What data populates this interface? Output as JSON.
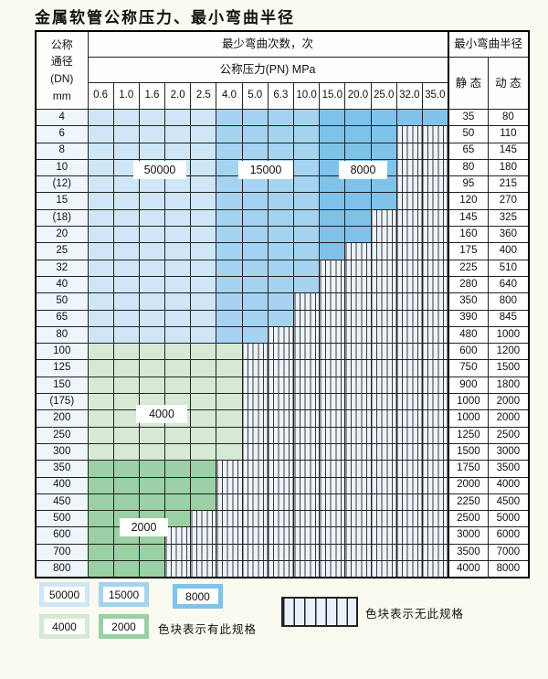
{
  "title": "金属软管公称压力、最小弯曲半径",
  "colors": {
    "c50000": "#cee6f5",
    "c15000": "#a6d3ef",
    "c8000": "#7fc2ea",
    "c4000": "#d6e9d4",
    "c2000": "#9ad0a3"
  },
  "table": {
    "header": {
      "dn_lines": [
        "公称",
        "通径",
        "(DN)",
        "mm"
      ],
      "cycles_header": "最少弯曲次数，次",
      "pn_header": "公称压力(PN) MPa",
      "pn_columns": [
        "0.6",
        "1.0",
        "1.6",
        "2.0",
        "2.5",
        "4.0",
        "5.0",
        "6.3",
        "10.0",
        "15.0",
        "20.0",
        "25.0",
        "32.0",
        "35.0"
      ],
      "radius_header": "最小弯曲半径",
      "static_header": "静 态",
      "dynamic_header": "动 态"
    },
    "blue_groups": [
      {
        "upto": 4,
        "cycles": "50000",
        "color": "c50000"
      },
      {
        "upto": 8,
        "cycles": "15000",
        "color": "c15000"
      },
      {
        "upto": 13,
        "cycles": "8000",
        "color": "c8000"
      }
    ],
    "rows": [
      {
        "dn": "4",
        "last": 13,
        "palette": "blue",
        "static": "35",
        "dynamic": "80"
      },
      {
        "dn": "6",
        "last": 11,
        "palette": "blue",
        "static": "50",
        "dynamic": "110"
      },
      {
        "dn": "8",
        "last": 11,
        "palette": "blue",
        "static": "65",
        "dynamic": "145"
      },
      {
        "dn": "10",
        "last": 11,
        "palette": "blue",
        "static": "80",
        "dynamic": "180"
      },
      {
        "dn": "(12)",
        "last": 11,
        "palette": "blue",
        "static": "95",
        "dynamic": "215"
      },
      {
        "dn": "15",
        "last": 11,
        "palette": "blue",
        "static": "120",
        "dynamic": "270"
      },
      {
        "dn": "(18)",
        "last": 10,
        "palette": "blue",
        "static": "145",
        "dynamic": "325"
      },
      {
        "dn": "20",
        "last": 10,
        "palette": "blue",
        "static": "160",
        "dynamic": "360"
      },
      {
        "dn": "25",
        "last": 9,
        "palette": "blue",
        "static": "175",
        "dynamic": "400"
      },
      {
        "dn": "32",
        "last": 8,
        "palette": "blue",
        "static": "225",
        "dynamic": "510"
      },
      {
        "dn": "40",
        "last": 8,
        "palette": "blue",
        "static": "280",
        "dynamic": "640"
      },
      {
        "dn": "50",
        "last": 7,
        "palette": "blue",
        "static": "350",
        "dynamic": "800"
      },
      {
        "dn": "65",
        "last": 7,
        "palette": "blue",
        "static": "390",
        "dynamic": "845"
      },
      {
        "dn": "80",
        "last": 6,
        "palette": "blue",
        "static": "480",
        "dynamic": "1000"
      },
      {
        "dn": "100",
        "last": 5,
        "palette": "green4000",
        "static": "600",
        "dynamic": "1200"
      },
      {
        "dn": "125",
        "last": 5,
        "palette": "green4000",
        "static": "750",
        "dynamic": "1500"
      },
      {
        "dn": "150",
        "last": 5,
        "palette": "green4000",
        "static": "900",
        "dynamic": "1800"
      },
      {
        "dn": "(175)",
        "last": 5,
        "palette": "green4000",
        "static": "1000",
        "dynamic": "2000"
      },
      {
        "dn": "200",
        "last": 5,
        "palette": "green4000",
        "static": "1000",
        "dynamic": "2000"
      },
      {
        "dn": "250",
        "last": 5,
        "palette": "green4000",
        "static": "1250",
        "dynamic": "2500"
      },
      {
        "dn": "300",
        "last": 5,
        "palette": "green4000",
        "static": "1500",
        "dynamic": "3000"
      },
      {
        "dn": "350",
        "last": 4,
        "palette": "green2000",
        "static": "1750",
        "dynamic": "3500"
      },
      {
        "dn": "400",
        "last": 4,
        "palette": "green2000",
        "static": "2000",
        "dynamic": "4000"
      },
      {
        "dn": "450",
        "last": 4,
        "palette": "green2000",
        "static": "2250",
        "dynamic": "4500"
      },
      {
        "dn": "500",
        "last": 3,
        "palette": "green2000",
        "static": "2500",
        "dynamic": "5000"
      },
      {
        "dn": "600",
        "last": 2,
        "palette": "green2000",
        "static": "3000",
        "dynamic": "6000"
      },
      {
        "dn": "700",
        "last": 2,
        "palette": "green2000",
        "static": "3500",
        "dynamic": "7000"
      },
      {
        "dn": "800",
        "last": 2,
        "palette": "green2000",
        "static": "4000",
        "dynamic": "8000"
      }
    ]
  },
  "overlays": {
    "l50000": "50000",
    "l15000": "15000",
    "l8000": "8000",
    "l4000": "4000",
    "l2000": "2000"
  },
  "legend": {
    "items": [
      {
        "label": "50000",
        "color": "c50000"
      },
      {
        "label": "15000",
        "color": "c15000"
      },
      {
        "label": "8000",
        "color": "c8000"
      },
      {
        "label": "4000",
        "color": "c4000"
      },
      {
        "label": "2000",
        "color": "c2000"
      }
    ],
    "available_note": "色块表示有此规格",
    "unavailable_note": "色块表示无此规格"
  }
}
